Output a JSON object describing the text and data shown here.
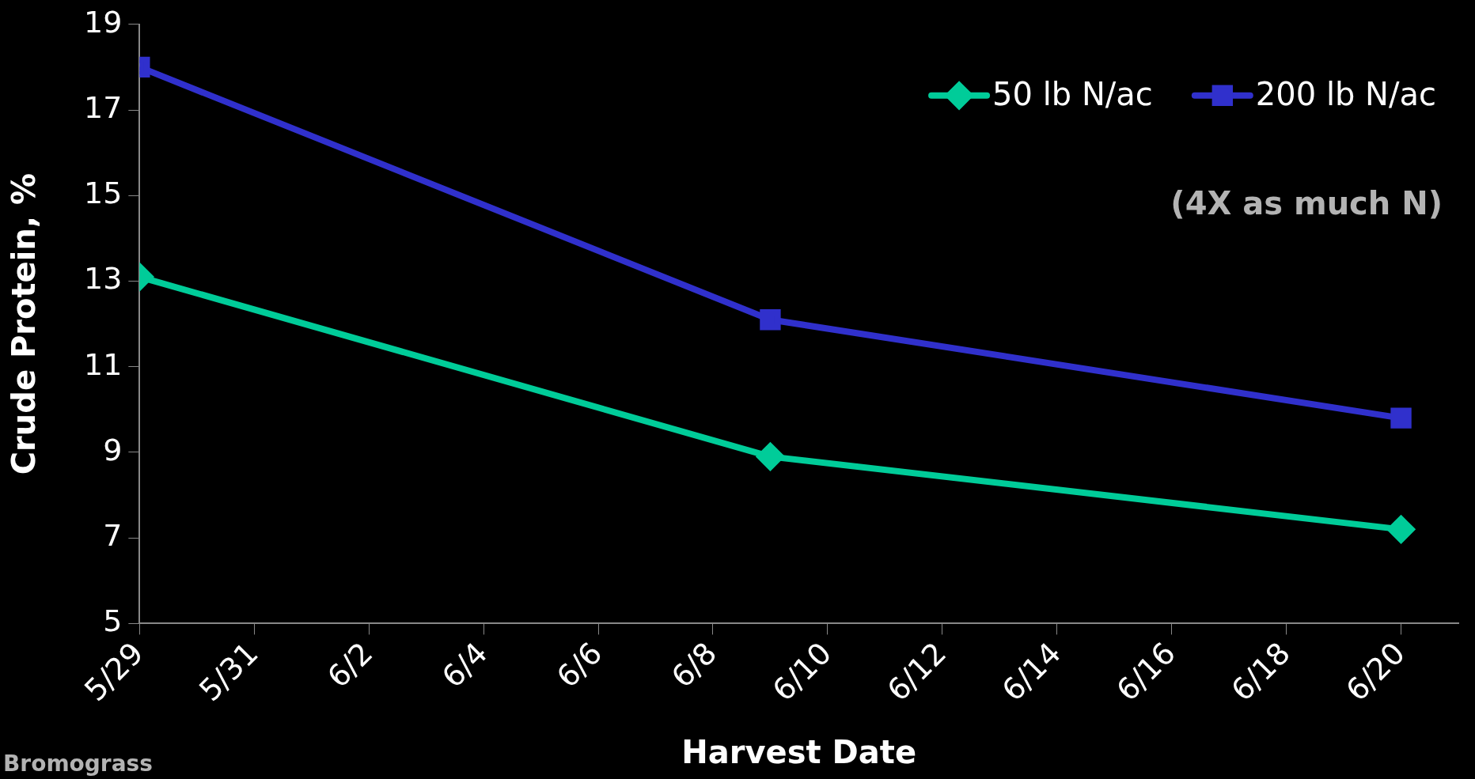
{
  "chart_data": {
    "type": "line",
    "xlabel": "Harvest Date",
    "ylabel": "Crude Protein, %",
    "annotations": [
      "(4X as much N)",
      "Bromograss"
    ],
    "x": [
      "--05-29",
      "--06-09",
      "--06-20"
    ],
    "series": [
      {
        "name": "50 lb N/ac",
        "color": "#00cc99",
        "marker": "diamond",
        "values": [
          13.1,
          8.9,
          7.2
        ]
      },
      {
        "name": "200 lb N/ac",
        "color": "#3030cc",
        "marker": "square",
        "values": [
          18.0,
          12.1,
          9.8
        ]
      }
    ],
    "xlim": [
      "--05-29",
      "--06-21"
    ],
    "xticks": [
      {
        "value": "--05-29",
        "label": "5/29"
      },
      {
        "value": "--05-31",
        "label": "5/31"
      },
      {
        "value": "--06-02",
        "label": "6/2"
      },
      {
        "value": "--06-04",
        "label": "6/4"
      },
      {
        "value": "--06-06",
        "label": "6/6"
      },
      {
        "value": "--06-08",
        "label": "6/8"
      },
      {
        "value": "--06-10",
        "label": "6/10"
      },
      {
        "value": "--06-12",
        "label": "6/12"
      },
      {
        "value": "--06-14",
        "label": "6/14"
      },
      {
        "value": "--06-16",
        "label": "6/16"
      },
      {
        "value": "--06-18",
        "label": "6/18"
      },
      {
        "value": "--06-20",
        "label": "6/20"
      }
    ],
    "ylim": [
      5,
      19
    ],
    "yticks": [
      5,
      7,
      9,
      11,
      13,
      15,
      17,
      19
    ],
    "legend": "top right",
    "grid": false,
    "line_style": "solid"
  }
}
